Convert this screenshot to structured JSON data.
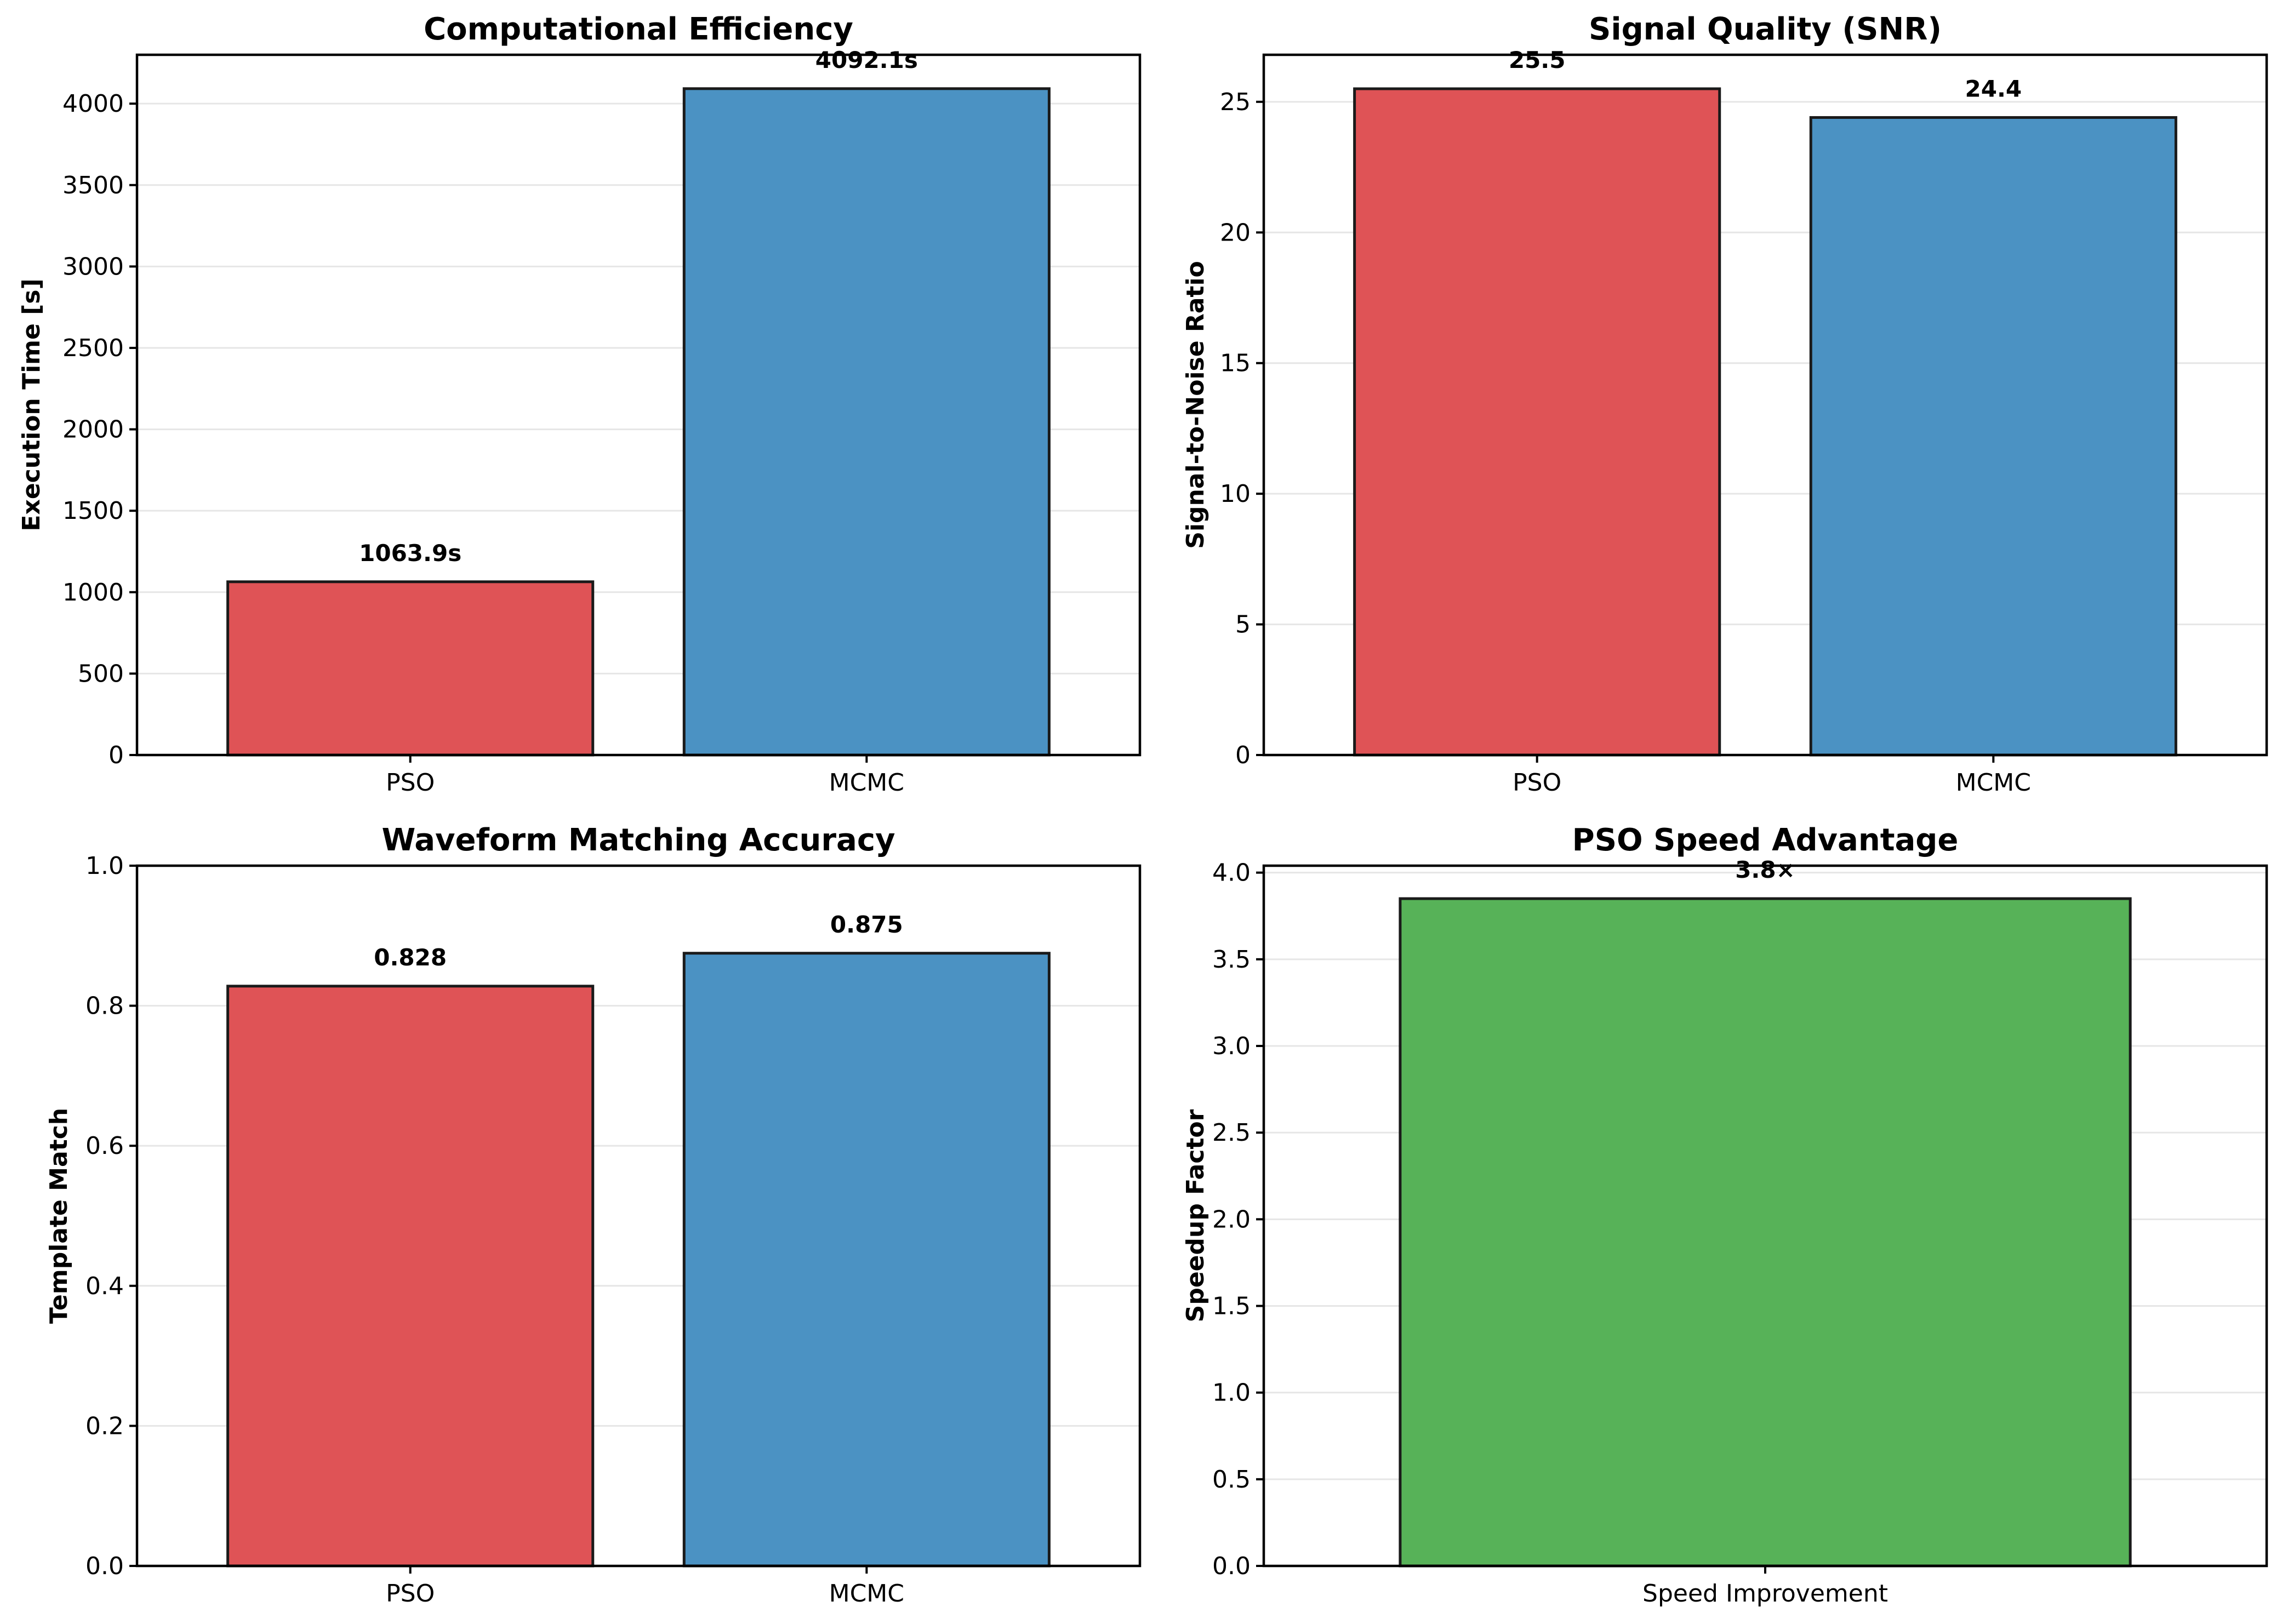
{
  "colors": {
    "pso": "#df5356",
    "mcmc": "#4b92c3",
    "speedup": "#57b258",
    "grid": "#e6e6e6",
    "edge": "#1a1a1a"
  },
  "chart_data": [
    {
      "type": "bar",
      "title": "Computational Efficiency",
      "ylabel": "Execution Time [s]",
      "categories": [
        "PSO",
        "MCMC"
      ],
      "values": [
        1063.9,
        4092.1
      ],
      "data_labels": [
        "1063.9s",
        "4092.1s"
      ],
      "bar_colors": [
        "#df5356",
        "#4b92c3"
      ],
      "ylim": [
        0,
        4300
      ],
      "yticks": [
        0,
        500,
        1000,
        1500,
        2000,
        2500,
        3000,
        3500,
        4000
      ],
      "ytick_labels": [
        "0",
        "500",
        "1000",
        "1500",
        "2000",
        "2500",
        "3000",
        "3500",
        "4000"
      ],
      "grid": true
    },
    {
      "type": "bar",
      "title": "Signal Quality (SNR)",
      "ylabel": "Signal-to-Noise Ratio",
      "categories": [
        "PSO",
        "MCMC"
      ],
      "values": [
        25.5,
        24.4
      ],
      "data_labels": [
        "25.5",
        "24.4"
      ],
      "bar_colors": [
        "#df5356",
        "#4b92c3"
      ],
      "ylim": [
        0,
        26.8
      ],
      "yticks": [
        0,
        5,
        10,
        15,
        20,
        25
      ],
      "ytick_labels": [
        "0",
        "5",
        "10",
        "15",
        "20",
        "25"
      ],
      "grid": true
    },
    {
      "type": "bar",
      "title": "Waveform Matching Accuracy",
      "ylabel": "Template Match",
      "categories": [
        "PSO",
        "MCMC"
      ],
      "values": [
        0.828,
        0.875
      ],
      "data_labels": [
        "0.828",
        "0.875"
      ],
      "bar_colors": [
        "#df5356",
        "#4b92c3"
      ],
      "ylim": [
        0,
        1.0
      ],
      "yticks": [
        0,
        0.2,
        0.4,
        0.6,
        0.8,
        1.0
      ],
      "ytick_labels": [
        "0.0",
        "0.2",
        "0.4",
        "0.6",
        "0.8",
        "1.0"
      ],
      "grid": true
    },
    {
      "type": "bar",
      "title": "PSO Speed Advantage",
      "ylabel": "Speedup Factor",
      "categories": [
        "Speed Improvement"
      ],
      "values": [
        3.85
      ],
      "data_labels": [
        "3.8×"
      ],
      "bar_colors": [
        "#57b258"
      ],
      "ylim": [
        0,
        4.04
      ],
      "yticks": [
        0,
        0.5,
        1.0,
        1.5,
        2.0,
        2.5,
        3.0,
        3.5,
        4.0
      ],
      "ytick_labels": [
        "0.0",
        "0.5",
        "1.0",
        "1.5",
        "2.0",
        "2.5",
        "3.0",
        "3.5",
        "4.0"
      ],
      "grid": true
    }
  ]
}
